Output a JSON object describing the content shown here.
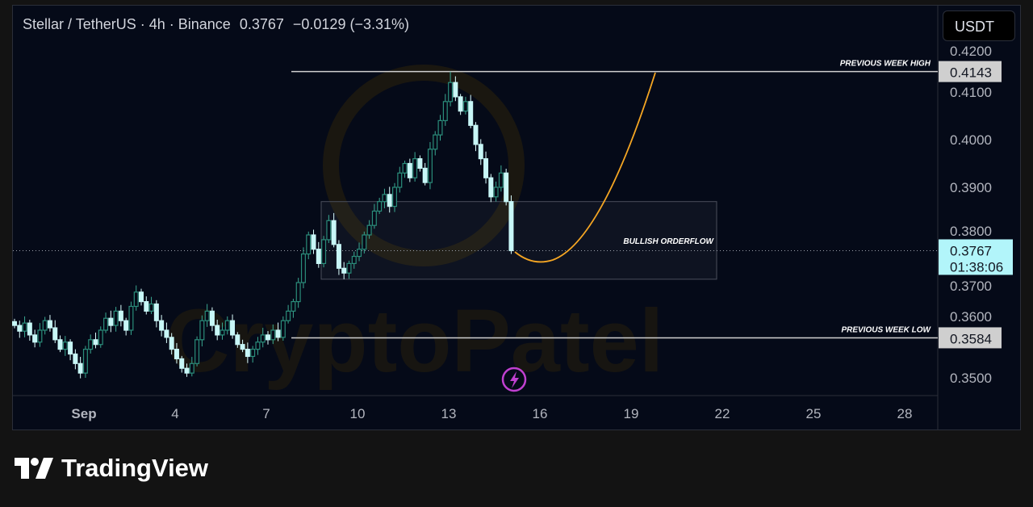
{
  "header": {
    "symbol": "Stellar / TetherUS · 4h · Binance",
    "last_price": "0.3767",
    "change": "−0.0129 (−3.31%)"
  },
  "currency_button": "USDT",
  "brand": {
    "name": "TradingView",
    "watermark": "CryptoPatel"
  },
  "chart_data": {
    "type": "candlestick",
    "interval": "4h",
    "x_tick_labels": [
      "Sep",
      "4",
      "7",
      "10",
      "13",
      "16",
      "19",
      "22",
      "25",
      "28"
    ],
    "y_tick_labels": [
      "0.4200",
      "0.4100",
      "0.4000",
      "0.3900",
      "0.3800",
      "0.3700",
      "0.3600",
      "0.3500"
    ],
    "y_range": [
      0.347,
      0.424
    ],
    "closes": [
      0.361,
      0.3598,
      0.3615,
      0.359,
      0.3575,
      0.36,
      0.362,
      0.3605,
      0.358,
      0.356,
      0.3575,
      0.355,
      0.353,
      0.351,
      0.356,
      0.358,
      0.357,
      0.36,
      0.3625,
      0.361,
      0.364,
      0.362,
      0.36,
      0.365,
      0.368,
      0.366,
      0.364,
      0.3655,
      0.362,
      0.36,
      0.3585,
      0.356,
      0.354,
      0.352,
      0.351,
      0.353,
      0.358,
      0.362,
      0.364,
      0.361,
      0.359,
      0.36,
      0.362,
      0.359,
      0.357,
      0.356,
      0.3545,
      0.356,
      0.3575,
      0.359,
      0.358,
      0.36,
      0.3585,
      0.362,
      0.364,
      0.366,
      0.37,
      0.376,
      0.38,
      0.377,
      0.374,
      0.379,
      0.383,
      0.378,
      0.373,
      0.372,
      0.374,
      0.3755,
      0.377,
      0.38,
      0.382,
      0.385,
      0.387,
      0.3885,
      0.386,
      0.39,
      0.393,
      0.395,
      0.392,
      0.396,
      0.394,
      0.391,
      0.398,
      0.401,
      0.404,
      0.408,
      0.412,
      0.409,
      0.406,
      0.408,
      0.403,
      0.399,
      0.396,
      0.392,
      0.388,
      0.39,
      0.393,
      0.387,
      0.3767
    ],
    "annotations": {
      "previous_week_high": {
        "label": "PREVIOUS WEEK HIGH",
        "price": "0.4143"
      },
      "previous_week_low": {
        "label": "PREVIOUS WEEK LOW",
        "price": "0.3584"
      },
      "zone": {
        "label": "BULLISH ORDERFLOW",
        "top": 0.387,
        "bottom": 0.3707
      },
      "current_price": {
        "price": "0.3767",
        "countdown": "01:38:06"
      }
    },
    "colors": {
      "up": "#2a8c7a",
      "down": "#c8f7f7",
      "projection": "#f5a623",
      "current": "#b2f5fa"
    }
  }
}
